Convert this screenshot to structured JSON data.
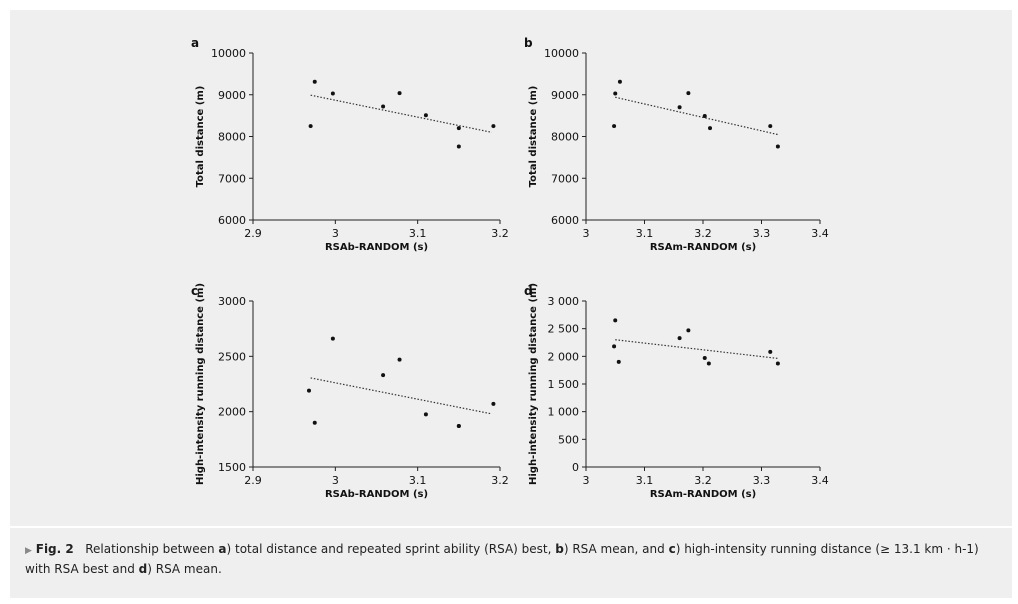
{
  "chart_data": [
    {
      "type": "scatter",
      "panel_label": "a",
      "xlabel": "RSAb-RANDOM (s)",
      "ylabel": "Total distance (m)",
      "xlim": [
        2.9,
        3.2
      ],
      "ylim": [
        6000,
        10000
      ],
      "xticks": [
        2.9,
        3,
        3.1,
        3.2
      ],
      "xtick_labels": [
        "2.9",
        "3",
        "3.1",
        "3.2"
      ],
      "yticks": [
        6000,
        7000,
        8000,
        9000,
        10000
      ],
      "ytick_labels": [
        "6000",
        "7000",
        "8000",
        "9000",
        "10000"
      ],
      "x": [
        2.97,
        2.975,
        2.997,
        3.058,
        3.078,
        3.11,
        3.15,
        3.15,
        3.192
      ],
      "y": [
        8250,
        9310,
        9030,
        8720,
        9040,
        8510,
        8200,
        7760,
        8250
      ],
      "trendline": {
        "style": "dotted",
        "x": [
          2.97,
          3.19
        ],
        "y": [
          8990,
          8100
        ]
      },
      "grid": false
    },
    {
      "type": "scatter",
      "panel_label": "b",
      "xlabel": "RSAm-RANDOM (s)",
      "ylabel": "Total distance (m)",
      "xlim": [
        3.0,
        3.4
      ],
      "ylim": [
        6000,
        10000
      ],
      "xticks": [
        3,
        3.1,
        3.2,
        3.3,
        3.4
      ],
      "xtick_labels": [
        "3",
        "3.1",
        "3.2",
        "3.3",
        "3.4"
      ],
      "yticks": [
        6000,
        7000,
        8000,
        9000,
        10000
      ],
      "ytick_labels": [
        "6000",
        "7000",
        "8000",
        "9000",
        "10000"
      ],
      "x": [
        3.048,
        3.05,
        3.058,
        3.16,
        3.175,
        3.203,
        3.212,
        3.315,
        3.328
      ],
      "y": [
        8250,
        9030,
        9310,
        8700,
        9040,
        8490,
        8200,
        8250,
        7760
      ],
      "trendline": {
        "style": "dotted",
        "x": [
          3.05,
          3.33
        ],
        "y": [
          8940,
          8040
        ]
      },
      "grid": false
    },
    {
      "type": "scatter",
      "panel_label": "c",
      "xlabel": "RSAb-RANDOM (s)",
      "ylabel": "High-intensity running distance (m)",
      "xlim": [
        2.9,
        3.2
      ],
      "ylim": [
        1500,
        3000
      ],
      "xticks": [
        2.9,
        3,
        3.1,
        3.2
      ],
      "xtick_labels": [
        "2.9",
        "3",
        "3.1",
        "3.2"
      ],
      "yticks": [
        1500,
        2000,
        2500,
        3000
      ],
      "ytick_labels": [
        "1500",
        "2000",
        "2500",
        "3000"
      ],
      "x": [
        2.968,
        2.975,
        2.997,
        3.058,
        3.078,
        3.11,
        3.15,
        3.15,
        3.192
      ],
      "y": [
        2190,
        1900,
        2660,
        2330,
        2470,
        1975,
        1870,
        1870,
        2070
      ],
      "trendline": {
        "style": "dotted",
        "x": [
          2.97,
          3.19
        ],
        "y": [
          2305,
          1980
        ]
      },
      "grid": false
    },
    {
      "type": "scatter",
      "panel_label": "d",
      "xlabel": "RSAm-RANDOM (s)",
      "ylabel": "High-intensity running distance (m)",
      "xlim": [
        3.0,
        3.4
      ],
      "ylim": [
        0,
        3000
      ],
      "xticks": [
        3,
        3.1,
        3.2,
        3.3,
        3.4
      ],
      "xtick_labels": [
        "3",
        "3.1",
        "3.2",
        "3.3",
        "3.4"
      ],
      "yticks": [
        0,
        500,
        1000,
        1500,
        2000,
        2500,
        3000
      ],
      "ytick_labels": [
        "0",
        "500",
        "1 000",
        "1 500",
        "2 000",
        "2 500",
        "3 000"
      ],
      "x": [
        3.048,
        3.05,
        3.056,
        3.16,
        3.175,
        3.203,
        3.21,
        3.315,
        3.328
      ],
      "y": [
        2180,
        2650,
        1900,
        2330,
        2470,
        1970,
        1870,
        2080,
        1870
      ],
      "trendline": {
        "style": "dotted",
        "x": [
          3.05,
          3.33
        ],
        "y": [
          2300,
          1960
        ]
      },
      "grid": false
    }
  ],
  "caption": {
    "marker": "▶",
    "fig_label": "Fig. 2",
    "text_1": "Relationship between ",
    "a": "a",
    "text_2": ") total distance and repeated sprint ability (RSA) best, ",
    "b": "b",
    "text_3": ") RSA mean, and ",
    "c": "c",
    "text_4": ") high-intensity running distance (≥ 13.1 km · h-1) with RSA best and ",
    "d": "d",
    "text_5": ") RSA mean."
  },
  "colors": {
    "panel_background": "#efefef",
    "axis": "#222222",
    "points": "#111111",
    "trendline": "#333333"
  }
}
